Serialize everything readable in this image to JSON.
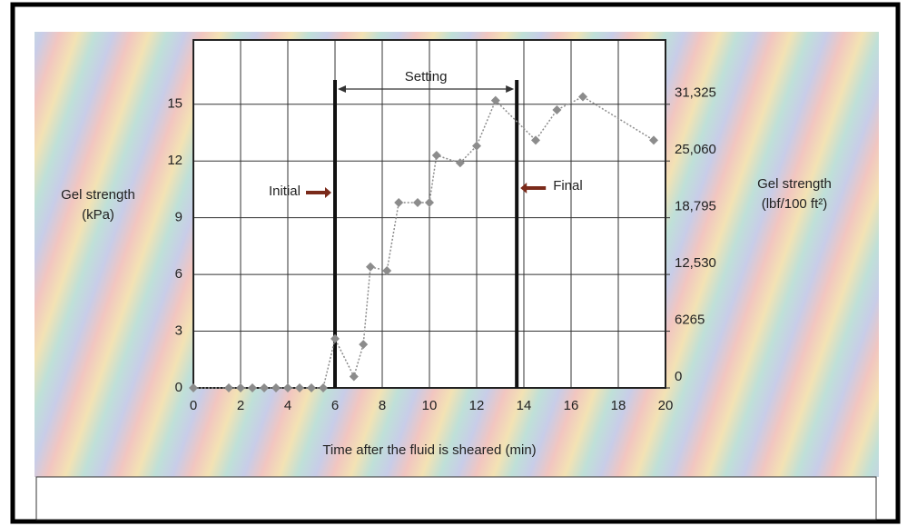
{
  "chart_data": {
    "type": "line",
    "xlabel": "Time after the fluid is sheared (min)",
    "ylabel": [
      "Gel strength",
      "(kPa)"
    ],
    "y2label": [
      "Gel strength",
      "(lbf/100 ft²)"
    ],
    "x": [
      0,
      1.5,
      2,
      2.5,
      3,
      3.5,
      4,
      4.5,
      5,
      5.5,
      6,
      6.8,
      7.2,
      7.5,
      8.2,
      8.7,
      9.5,
      10,
      10.3,
      11.3,
      12,
      12.8,
      14.5,
      15.4,
      16.5,
      19.5
    ],
    "series": [
      {
        "color": "#8c8c8c",
        "values": [
          0,
          0,
          0,
          0,
          0,
          0,
          0,
          0,
          0,
          0,
          2.6,
          0.6,
          2.3,
          6.4,
          6.2,
          9.8,
          9.8,
          9.8,
          12.3,
          11.9,
          12.8,
          15.2,
          13.1,
          14.7,
          15.4,
          13.1
        ]
      }
    ],
    "xlim": [
      0,
      20
    ],
    "xticks": [
      0,
      2,
      4,
      6,
      8,
      10,
      12,
      14,
      16,
      18,
      20
    ],
    "ylim": [
      0,
      18.4
    ],
    "yticks": [
      0,
      3,
      6,
      9,
      12,
      15
    ],
    "y2lim": [
      0,
      38425
    ],
    "y2ticks": [
      0,
      6265,
      {
        "value": 12530,
        "label": "12,530"
      },
      {
        "value": 18795,
        "label": "18,795"
      },
      {
        "value": 25060,
        "label": "25,060"
      },
      {
        "value": 31325,
        "label": "31,325"
      }
    ],
    "grid": true,
    "markers": [
      {
        "label": "Initial",
        "x": 6
      },
      {
        "label": "Final",
        "x": 13.7
      }
    ],
    "span_label": "Setting"
  }
}
